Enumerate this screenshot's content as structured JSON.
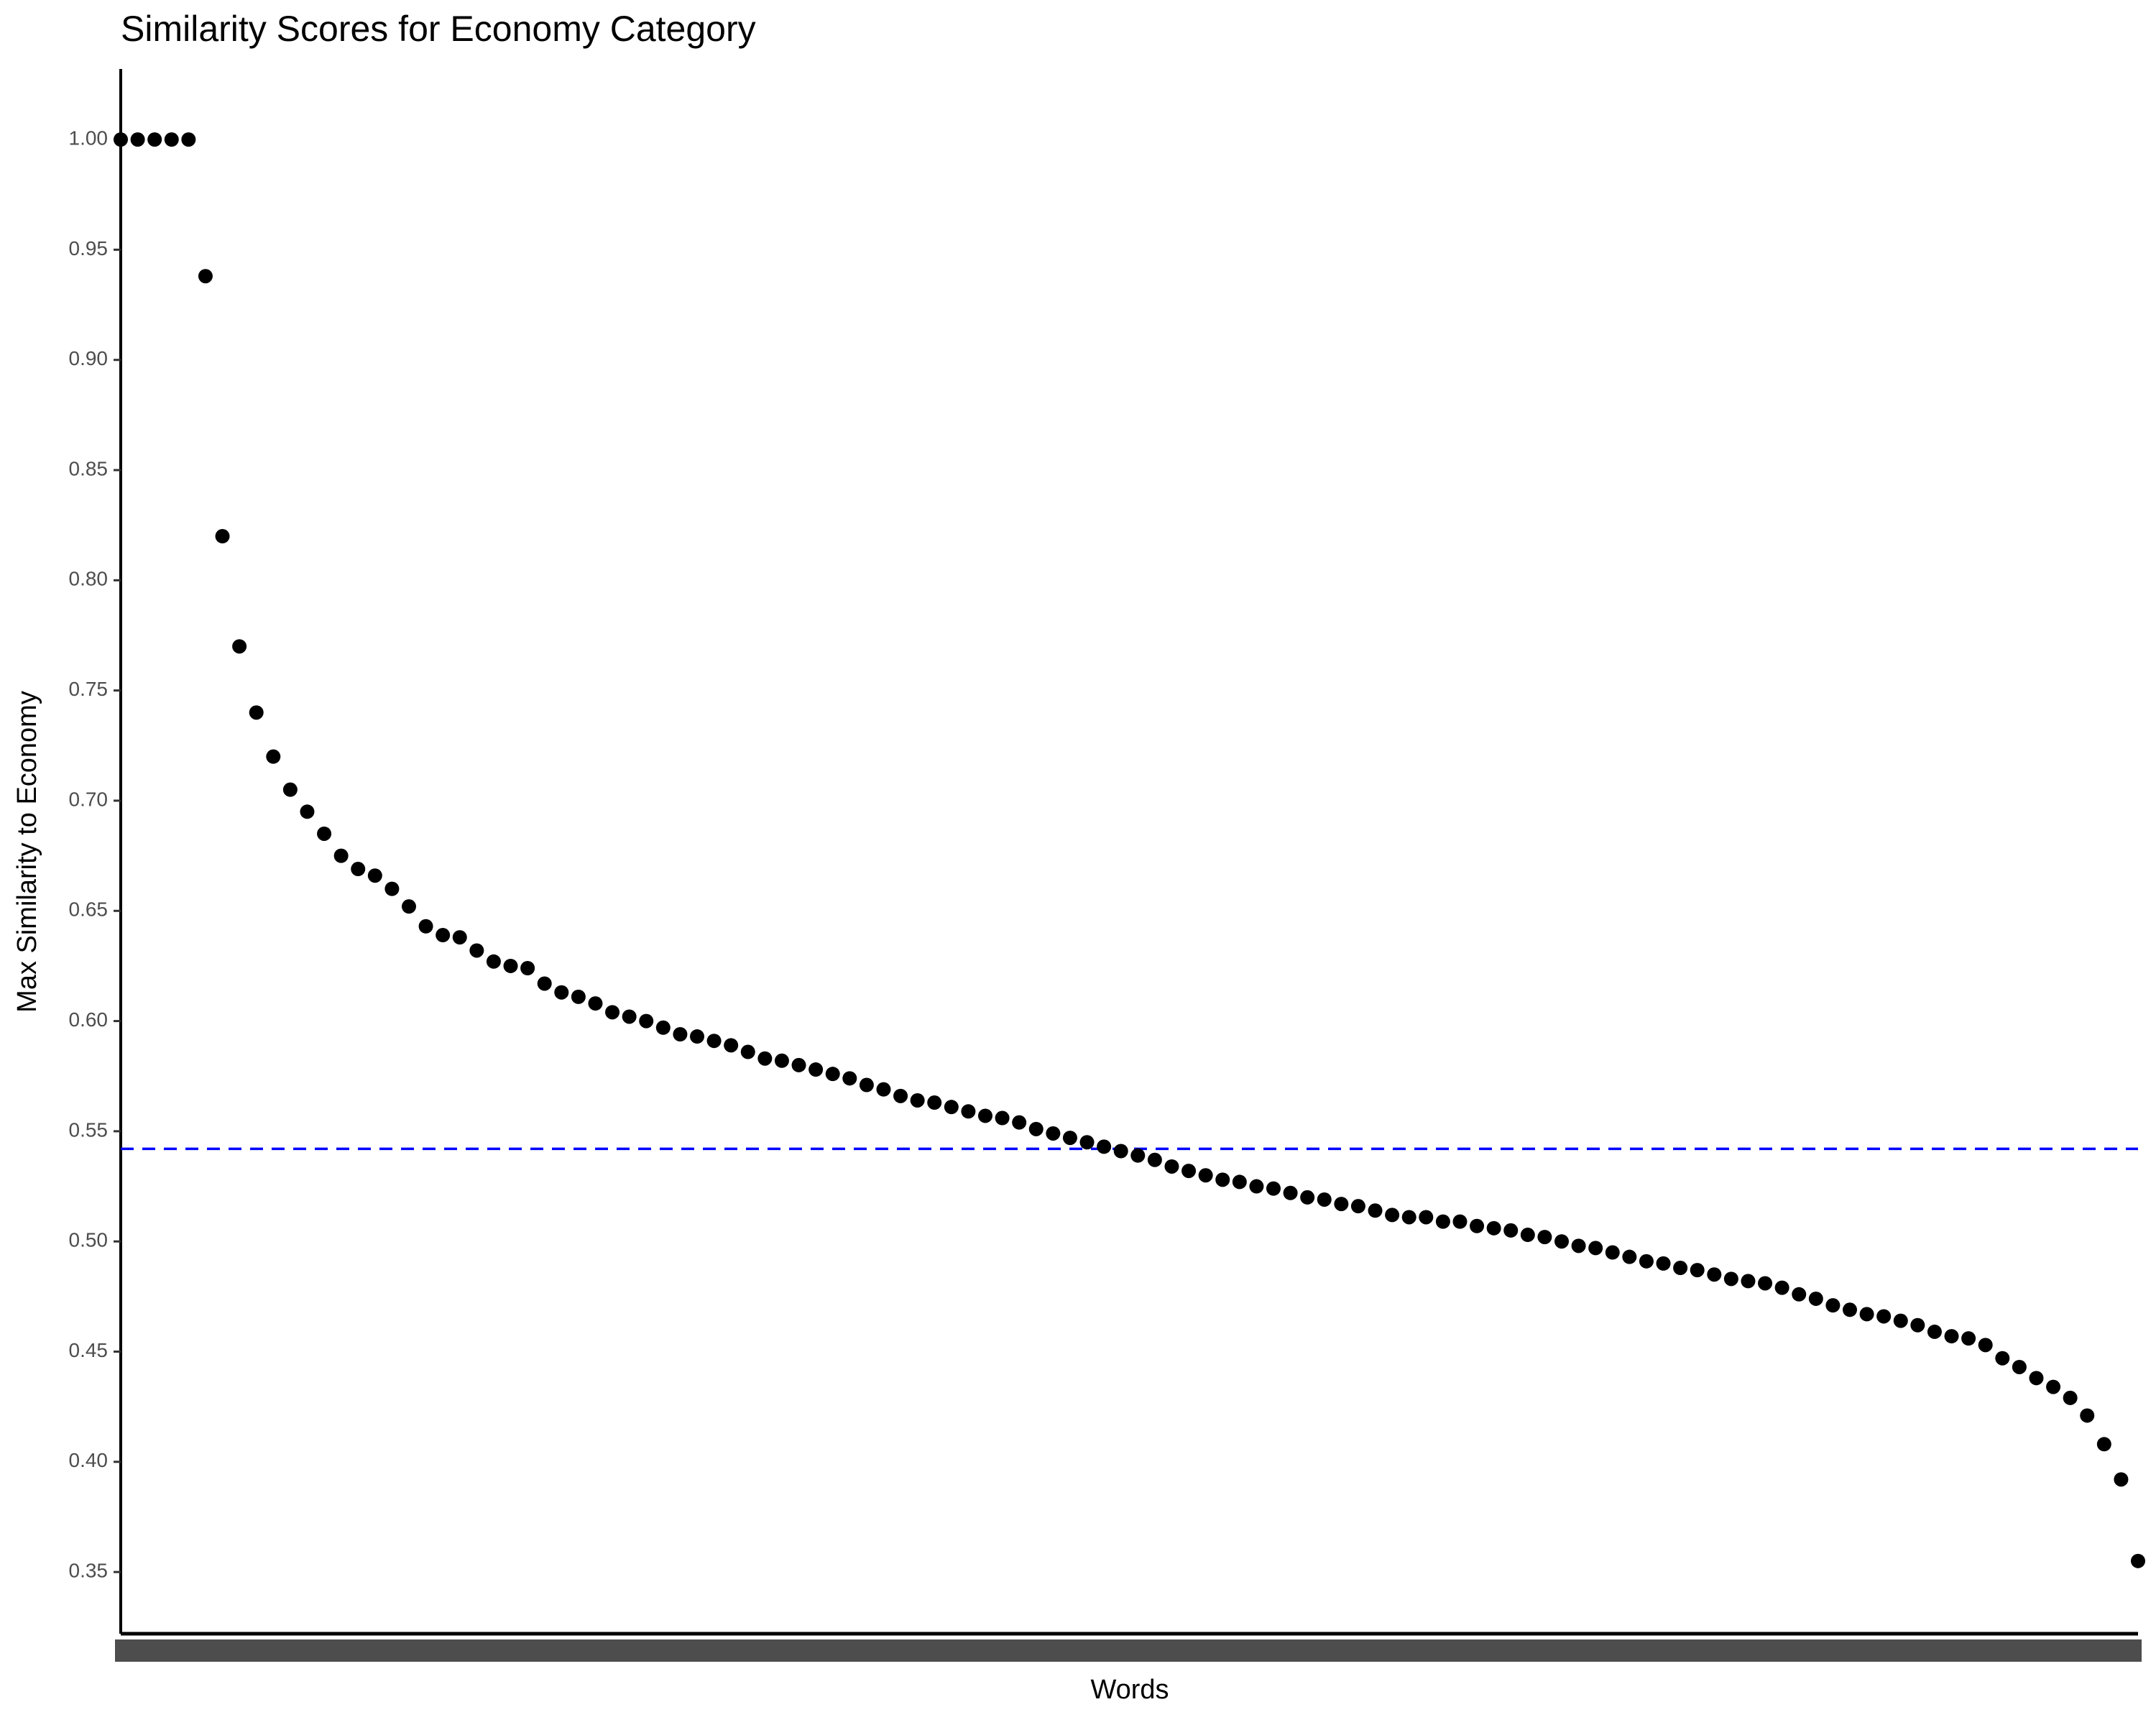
{
  "chart_data": {
    "type": "scatter",
    "title": "Similarity Scores for Economy Category",
    "x_label": "Words",
    "y_label": "Max Similarity to Economy",
    "categories": [
      null,
      null,
      null,
      null,
      null,
      null,
      null,
      null,
      null,
      null,
      null,
      null,
      null,
      null,
      null,
      null,
      null,
      null,
      null,
      null,
      null,
      null,
      null,
      null,
      null,
      null,
      null,
      null,
      null,
      null,
      null,
      null,
      null,
      null,
      null,
      null,
      null,
      null,
      null,
      null,
      null,
      null,
      null,
      null,
      null,
      null,
      null,
      null,
      null,
      null,
      null,
      null,
      null,
      null,
      null,
      null,
      null,
      null,
      null,
      null,
      null,
      null,
      null,
      null,
      null,
      null,
      null,
      null,
      null,
      null,
      null,
      null,
      null,
      null,
      null,
      null,
      null,
      null,
      null,
      null,
      null,
      null,
      null,
      null,
      null,
      null,
      null,
      null,
      null,
      null,
      null,
      null,
      null,
      null,
      null,
      null,
      null,
      null,
      null,
      null,
      null,
      null,
      null,
      null,
      null,
      null,
      null,
      null,
      null,
      null,
      null,
      null,
      null,
      null,
      null,
      null,
      null,
      null,
      null,
      null
    ],
    "values": [
      1.0,
      1.0,
      1.0,
      1.0,
      1.0,
      0.938,
      0.82,
      0.77,
      0.74,
      0.72,
      0.705,
      0.695,
      0.685,
      0.675,
      0.669,
      0.666,
      0.66,
      0.652,
      0.643,
      0.639,
      0.638,
      0.632,
      0.627,
      0.625,
      0.624,
      0.617,
      0.613,
      0.611,
      0.608,
      0.604,
      0.602,
      0.6,
      0.597,
      0.594,
      0.593,
      0.591,
      0.589,
      0.586,
      0.583,
      0.582,
      0.58,
      0.578,
      0.576,
      0.574,
      0.571,
      0.569,
      0.566,
      0.564,
      0.563,
      0.561,
      0.559,
      0.557,
      0.556,
      0.554,
      0.551,
      0.549,
      0.547,
      0.545,
      0.543,
      0.541,
      0.539,
      0.537,
      0.534,
      0.532,
      0.53,
      0.528,
      0.527,
      0.525,
      0.524,
      0.522,
      0.52,
      0.519,
      0.517,
      0.516,
      0.514,
      0.512,
      0.511,
      0.511,
      0.509,
      0.509,
      0.507,
      0.506,
      0.505,
      0.503,
      0.502,
      0.5,
      0.498,
      0.497,
      0.495,
      0.493,
      0.491,
      0.49,
      0.488,
      0.487,
      0.485,
      0.483,
      0.482,
      0.481,
      0.479,
      0.476,
      0.474,
      0.471,
      0.469,
      0.467,
      0.466,
      0.464,
      0.462,
      0.459,
      0.457,
      0.456,
      0.453,
      0.447,
      0.443,
      0.438,
      0.434,
      0.429,
      0.421,
      0.408,
      0.392,
      0.355
    ],
    "color": "#000000",
    "ylim": [
      0.322,
      1.032
    ],
    "yticks": [
      0.35,
      {
        "value": 0.4,
        "label": "0.40"
      },
      0.45,
      {
        "value": 0.5,
        "label": "0.50"
      },
      0.55,
      {
        "value": 0.6,
        "label": "0.60"
      },
      0.65,
      {
        "value": 0.7,
        "label": "0.70"
      },
      0.75,
      {
        "value": 0.8,
        "label": "0.80"
      },
      0.85,
      {
        "value": 0.9,
        "label": "0.90"
      },
      0.95,
      {
        "value": 1.0,
        "label": "1.00"
      }
    ],
    "hline": {
      "value": 0.542,
      "color": "#0000ff"
    },
    "grid": false
  }
}
